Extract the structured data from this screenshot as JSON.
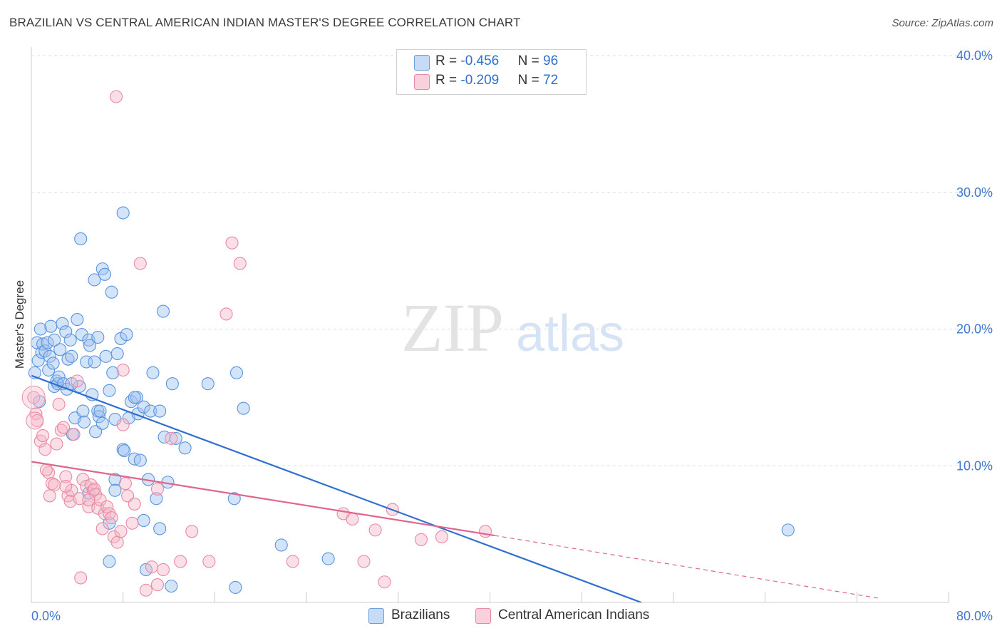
{
  "title": "BRAZILIAN VS CENTRAL AMERICAN INDIAN MASTER'S DEGREE CORRELATION CHART",
  "source": "Source: ZipAtlas.com",
  "watermark": {
    "zip": "ZIP",
    "atlas": "atlas"
  },
  "legend": {
    "rows": [
      {
        "r_label": "R = ",
        "r_value": "-0.456",
        "n_label": "N = ",
        "n_value": "96",
        "color": "#9fc3ef"
      },
      {
        "r_label": "R = ",
        "r_value": "-0.209",
        "n_label": "N = ",
        "n_value": "72",
        "color": "#f5b8c8"
      }
    ]
  },
  "bottom_legend": [
    {
      "label": "Brazilians",
      "color": "#9fc3ef"
    },
    {
      "label": "Central American Indians",
      "color": "#f5b8c8"
    }
  ],
  "chart_data": {
    "type": "scatter",
    "xlabel": "",
    "ylabel": "Master's Degree",
    "xlim": [
      0,
      80
    ],
    "ylim": [
      0,
      40
    ],
    "x_tick_labels": {
      "left": "0.0%",
      "right": "80.0%"
    },
    "y_tick_labels": [
      "10.0%",
      "20.0%",
      "30.0%",
      "40.0%"
    ],
    "y_ticks": [
      10,
      20,
      30,
      40
    ],
    "grid": true,
    "legend_position": "top-center",
    "colors": {
      "brazilians_fill": "#9fc3ef",
      "brazilians_stroke": "#5b93dc",
      "brazilians_line": "#2f6fd0",
      "cai_fill": "#f5b8c8",
      "cai_stroke": "#e889a5",
      "cai_line": "#e0648c",
      "tick_label": "#3f78d0",
      "grid": "#dddddd"
    },
    "series": [
      {
        "name": "Brazilians",
        "trend": {
          "x": [
            0,
            53.2
          ],
          "y": [
            16.6,
            0
          ]
        },
        "points": [
          [
            0.5,
            19.0
          ],
          [
            0.6,
            17.7
          ],
          [
            0.8,
            20.0
          ],
          [
            0.9,
            18.3
          ],
          [
            1.0,
            18.9
          ],
          [
            1.2,
            18.4
          ],
          [
            1.4,
            19.0
          ],
          [
            1.5,
            17.0
          ],
          [
            1.6,
            18.0
          ],
          [
            1.7,
            20.2
          ],
          [
            1.9,
            17.5
          ],
          [
            2.0,
            15.8
          ],
          [
            2.2,
            16.2
          ],
          [
            2.3,
            16.0
          ],
          [
            2.4,
            16.5
          ],
          [
            2.5,
            18.5
          ],
          [
            2.7,
            20.4
          ],
          [
            2.8,
            16.0
          ],
          [
            3.0,
            19.8
          ],
          [
            3.1,
            15.6
          ],
          [
            3.2,
            17.8
          ],
          [
            3.4,
            19.2
          ],
          [
            3.5,
            18.0
          ],
          [
            3.6,
            12.3
          ],
          [
            3.8,
            13.5
          ],
          [
            4.0,
            20.7
          ],
          [
            4.2,
            15.8
          ],
          [
            4.4,
            19.6
          ],
          [
            4.5,
            14.0
          ],
          [
            4.6,
            13.2
          ],
          [
            4.8,
            17.6
          ],
          [
            5.0,
            19.2
          ],
          [
            5.1,
            18.8
          ],
          [
            5.3,
            15.2
          ],
          [
            5.5,
            17.6
          ],
          [
            5.6,
            12.5
          ],
          [
            5.8,
            14.0
          ],
          [
            5.9,
            13.6
          ],
          [
            6.0,
            14.0
          ],
          [
            6.2,
            13.1
          ],
          [
            6.5,
            18.0
          ],
          [
            6.8,
            15.5
          ],
          [
            7.0,
            22.7
          ],
          [
            7.1,
            16.8
          ],
          [
            7.3,
            9.0
          ],
          [
            7.5,
            18.2
          ],
          [
            7.8,
            19.3
          ],
          [
            8.0,
            11.2
          ],
          [
            8.1,
            11.1
          ],
          [
            8.3,
            19.6
          ],
          [
            8.5,
            13.5
          ],
          [
            8.7,
            14.7
          ],
          [
            9.0,
            10.5
          ],
          [
            9.2,
            15.0
          ],
          [
            9.3,
            13.8
          ],
          [
            9.5,
            10.4
          ],
          [
            9.8,
            14.3
          ],
          [
            10.2,
            9.0
          ],
          [
            10.4,
            14.0
          ],
          [
            10.6,
            16.8
          ],
          [
            10.9,
            7.6
          ],
          [
            11.2,
            14.0
          ],
          [
            11.5,
            21.3
          ],
          [
            11.6,
            12.1
          ],
          [
            11.9,
            8.8
          ],
          [
            12.3,
            16.0
          ],
          [
            12.6,
            12.0
          ],
          [
            13.4,
            11.3
          ],
          [
            15.4,
            16.0
          ],
          [
            17.9,
            16.8
          ],
          [
            18.5,
            14.2
          ],
          [
            17.7,
            7.6
          ],
          [
            6.2,
            24.4
          ],
          [
            6.4,
            24.0
          ],
          [
            5.5,
            23.6
          ],
          [
            4.3,
            26.6
          ],
          [
            8.0,
            28.5
          ],
          [
            7.3,
            8.2
          ],
          [
            5.0,
            8.0
          ],
          [
            6.8,
            5.8
          ],
          [
            9.8,
            6.0
          ],
          [
            11.2,
            5.4
          ],
          [
            10.0,
            2.4
          ],
          [
            6.8,
            3.0
          ],
          [
            12.2,
            1.2
          ],
          [
            17.8,
            1.1
          ],
          [
            21.8,
            4.2
          ],
          [
            25.9,
            3.2
          ],
          [
            66.0,
            5.3
          ],
          [
            3.5,
            16.0
          ],
          [
            2.0,
            19.2
          ],
          [
            0.7,
            14.7
          ],
          [
            0.3,
            16.8
          ],
          [
            7.3,
            13.4
          ],
          [
            5.8,
            19.4
          ],
          [
            9.0,
            15.0
          ]
        ]
      },
      {
        "name": "Central American Indians",
        "trend": {
          "x": [
            0,
            40.4
          ],
          "y": [
            10.3,
            4.9
          ]
        },
        "trend_dashed": {
          "x": [
            40.4,
            74.0
          ],
          "y": [
            4.9,
            0.3
          ]
        },
        "points": [
          [
            0.2,
            15.0
          ],
          [
            0.4,
            13.8
          ],
          [
            0.5,
            13.3
          ],
          [
            0.8,
            11.8
          ],
          [
            1.0,
            12.2
          ],
          [
            1.2,
            11.2
          ],
          [
            1.5,
            9.5
          ],
          [
            1.6,
            7.8
          ],
          [
            1.8,
            8.7
          ],
          [
            2.0,
            8.6
          ],
          [
            2.2,
            11.6
          ],
          [
            2.4,
            14.5
          ],
          [
            2.6,
            12.6
          ],
          [
            2.8,
            12.8
          ],
          [
            3.0,
            9.2
          ],
          [
            3.2,
            7.8
          ],
          [
            3.4,
            7.4
          ],
          [
            3.5,
            8.2
          ],
          [
            3.7,
            12.3
          ],
          [
            4.0,
            16.2
          ],
          [
            4.2,
            7.6
          ],
          [
            4.5,
            9.0
          ],
          [
            4.8,
            8.5
          ],
          [
            5.0,
            7.0
          ],
          [
            5.2,
            8.6
          ],
          [
            5.4,
            8.2
          ],
          [
            5.5,
            8.3
          ],
          [
            5.6,
            7.9
          ],
          [
            5.8,
            6.9
          ],
          [
            6.0,
            7.5
          ],
          [
            6.2,
            5.4
          ],
          [
            6.4,
            6.5
          ],
          [
            6.6,
            7.0
          ],
          [
            6.8,
            6.5
          ],
          [
            7.0,
            6.2
          ],
          [
            7.2,
            4.8
          ],
          [
            7.5,
            4.4
          ],
          [
            7.8,
            5.2
          ],
          [
            8.0,
            13.0
          ],
          [
            8.2,
            8.7
          ],
          [
            8.4,
            7.8
          ],
          [
            8.8,
            5.8
          ],
          [
            9.0,
            7.2
          ],
          [
            9.5,
            24.8
          ],
          [
            10.5,
            2.6
          ],
          [
            11.0,
            1.3
          ],
          [
            11.5,
            2.4
          ],
          [
            11.0,
            8.3
          ],
          [
            12.2,
            12.0
          ],
          [
            13.0,
            3.0
          ],
          [
            14.0,
            5.2
          ],
          [
            15.5,
            3.0
          ],
          [
            17.0,
            21.1
          ],
          [
            17.5,
            26.3
          ],
          [
            18.2,
            24.8
          ],
          [
            22.8,
            3.0
          ],
          [
            27.2,
            6.5
          ],
          [
            28.0,
            6.1
          ],
          [
            29.0,
            3.0
          ],
          [
            30.0,
            5.3
          ],
          [
            30.8,
            1.5
          ],
          [
            31.5,
            6.8
          ],
          [
            34.0,
            4.6
          ],
          [
            35.8,
            4.8
          ],
          [
            39.6,
            5.2
          ],
          [
            7.4,
            37.0
          ],
          [
            4.3,
            1.8
          ],
          [
            10.0,
            0.9
          ],
          [
            5.0,
            7.5
          ],
          [
            3.0,
            8.5
          ],
          [
            8.0,
            17.0
          ],
          [
            1.3,
            9.7
          ]
        ]
      }
    ]
  }
}
